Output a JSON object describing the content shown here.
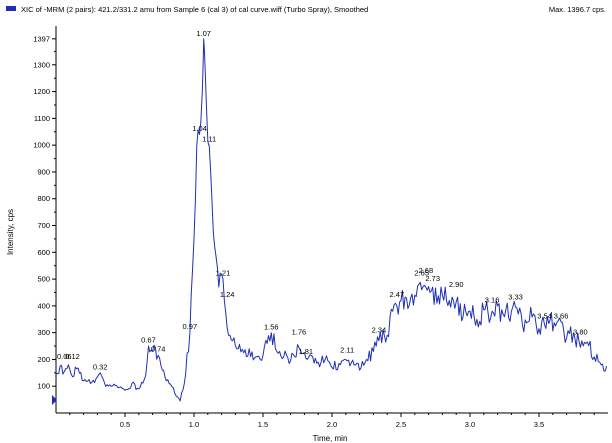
{
  "header": {
    "legend_color": "#1f2fb4",
    "title": "XIC of -MRM (2 pairs): 421.2/331.2 amu from Sample 6 (cal 3) of cal curve.wiff (Turbo Spray), Smoothed",
    "max_label": "Max. 1396.7 cps."
  },
  "chart_data": {
    "type": "line",
    "xlabel": "Time, min",
    "ylabel": "Intensity, cps",
    "xlim": [
      0.0,
      4.0
    ],
    "ylim": [
      0,
      1430
    ],
    "x_ticks": [
      0.5,
      1.0,
      1.5,
      2.0,
      2.5,
      3.0,
      3.5
    ],
    "x_tick_labels": [
      "0.5",
      "1.0",
      "1.5",
      "2.0",
      "2.5",
      "3.0",
      "3.5"
    ],
    "y_ticks": [
      100,
      200,
      300,
      400,
      500,
      600,
      700,
      800,
      900,
      1000,
      1100,
      1200,
      1300,
      1397
    ],
    "y_tick_labels": [
      "100",
      "200",
      "300",
      "400",
      "500",
      "600",
      "700",
      "800",
      "900",
      "1000",
      "1100",
      "1200",
      "1300",
      "1397"
    ],
    "line_color": "#1f2fb4",
    "series": [
      {
        "x": [
          0.0,
          0.03,
          0.06,
          0.09,
          0.12,
          0.15,
          0.2,
          0.25,
          0.3,
          0.32,
          0.35,
          0.4,
          0.45,
          0.5,
          0.55,
          0.6,
          0.65,
          0.67,
          0.7,
          0.74,
          0.77,
          0.8,
          0.85,
          0.88,
          0.9,
          0.93,
          0.97,
          1.0,
          1.02,
          1.04,
          1.06,
          1.07,
          1.08,
          1.1,
          1.11,
          1.13,
          1.15,
          1.18,
          1.21,
          1.24,
          1.28,
          1.32,
          1.36,
          1.4,
          1.45,
          1.5,
          1.53,
          1.56,
          1.6,
          1.65,
          1.7,
          1.76,
          1.81,
          1.85,
          1.9,
          1.95,
          2.0,
          2.05,
          2.11,
          2.16,
          2.2,
          2.25,
          2.3,
          2.34,
          2.4,
          2.44,
          2.47,
          2.5,
          2.55,
          2.6,
          2.65,
          2.68,
          2.71,
          2.73,
          2.76,
          2.8,
          2.85,
          2.9,
          2.95,
          3.0,
          3.05,
          3.1,
          3.16,
          3.2,
          3.25,
          3.3,
          3.33,
          3.38,
          3.42,
          3.46,
          3.5,
          3.54,
          3.58,
          3.62,
          3.66,
          3.7,
          3.75,
          3.8,
          3.85,
          3.9,
          3.95,
          3.99
        ],
        "y": [
          150,
          175,
          155,
          180,
          135,
          165,
          120,
          110,
          135,
          150,
          115,
          100,
          95,
          85,
          110,
          90,
          140,
          250,
          230,
          215,
          160,
          120,
          95,
          60,
          45,
          110,
          300,
          650,
          1000,
          1040,
          1200,
          1397,
          1300,
          1020,
          1000,
          800,
          620,
          470,
          500,
          320,
          270,
          240,
          225,
          240,
          210,
          215,
          260,
          300,
          230,
          210,
          195,
          245,
          205,
          215,
          190,
          200,
          170,
          185,
          195,
          180,
          160,
          200,
          230,
          270,
          290,
          380,
          400,
          420,
          390,
          440,
          460,
          470,
          450,
          470,
          410,
          440,
          420,
          415,
          360,
          380,
          350,
          385,
          380,
          400,
          360,
          380,
          395,
          330,
          340,
          370,
          315,
          330,
          345,
          325,
          340,
          280,
          300,
          245,
          265,
          210,
          180,
          175
        ]
      }
    ],
    "peak_labels": [
      {
        "x": 0.06,
        "y": 190,
        "text": "0.06"
      },
      {
        "x": 0.12,
        "y": 190,
        "text": "0.12"
      },
      {
        "x": 0.32,
        "y": 152,
        "text": "0.32"
      },
      {
        "x": 0.67,
        "y": 252,
        "text": "0.67"
      },
      {
        "x": 0.74,
        "y": 218,
        "text": "0.74"
      },
      {
        "x": 0.97,
        "y": 302,
        "text": "0.97"
      },
      {
        "x": 1.04,
        "y": 1042,
        "text": "1.04"
      },
      {
        "x": 1.07,
        "y": 1397,
        "text": "1.07"
      },
      {
        "x": 1.11,
        "y": 1002,
        "text": "1.11"
      },
      {
        "x": 1.21,
        "y": 502,
        "text": "1.21"
      },
      {
        "x": 1.24,
        "y": 422,
        "text": "1.24"
      },
      {
        "x": 1.56,
        "y": 300,
        "text": "1.56"
      },
      {
        "x": 1.76,
        "y": 282,
        "text": "1.76"
      },
      {
        "x": 1.81,
        "y": 210,
        "text": "1.81"
      },
      {
        "x": 2.11,
        "y": 215,
        "text": "2.11"
      },
      {
        "x": 2.34,
        "y": 290,
        "text": "2.34"
      },
      {
        "x": 2.47,
        "y": 422,
        "text": "2.47"
      },
      {
        "x": 2.65,
        "y": 502,
        "text": "2.65"
      },
      {
        "x": 2.68,
        "y": 512,
        "text": "2.68"
      },
      {
        "x": 2.73,
        "y": 482,
        "text": "2.73"
      },
      {
        "x": 2.9,
        "y": 460,
        "text": "2.90"
      },
      {
        "x": 3.16,
        "y": 402,
        "text": "3.16"
      },
      {
        "x": 3.33,
        "y": 412,
        "text": "3.33"
      },
      {
        "x": 3.54,
        "y": 342,
        "text": "3.54"
      },
      {
        "x": 3.66,
        "y": 342,
        "text": "3.66"
      },
      {
        "x": 3.8,
        "y": 282,
        "text": "3.80"
      }
    ],
    "grid": false,
    "legend_position": "top-left"
  }
}
